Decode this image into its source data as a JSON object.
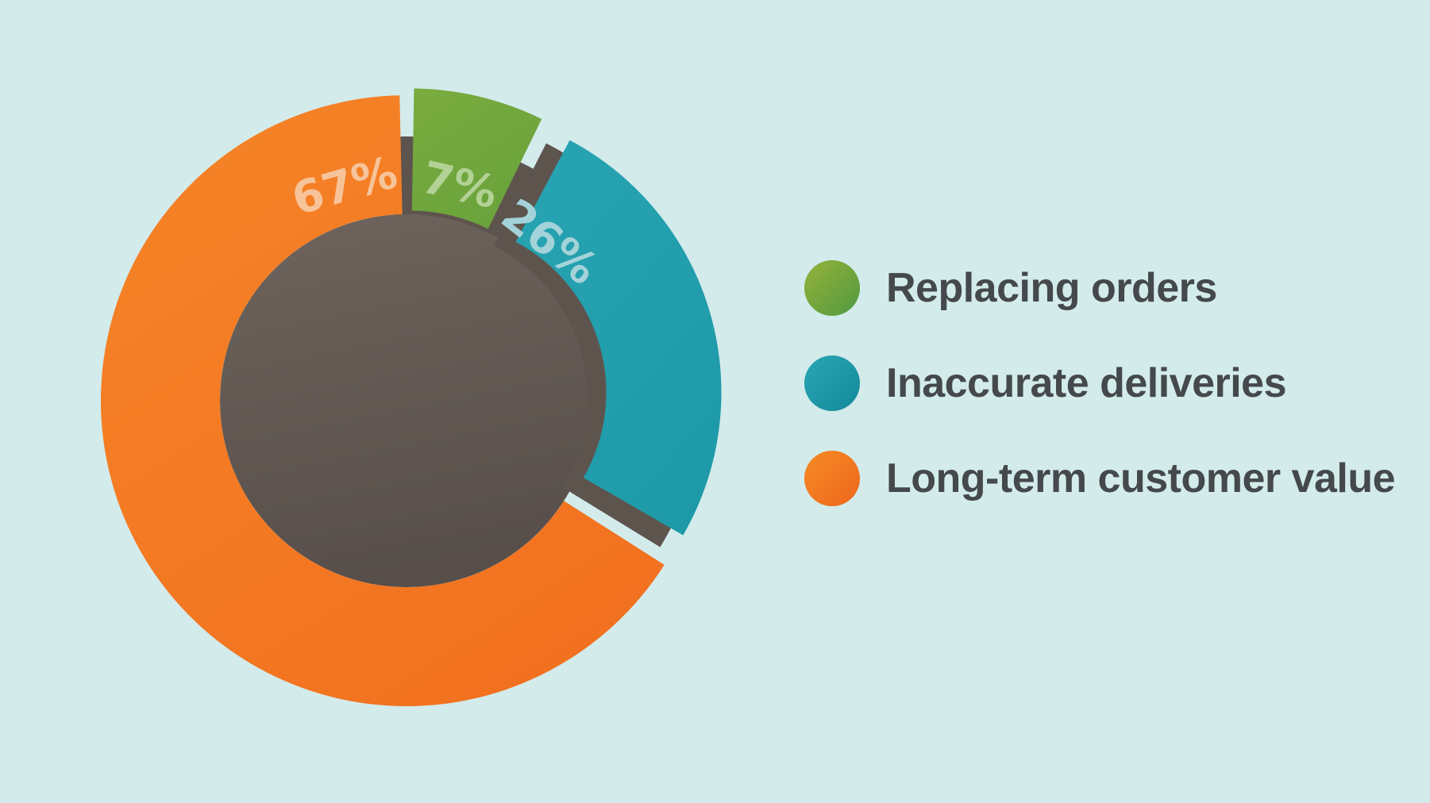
{
  "background_color": "#d3ebeb",
  "chart_data": {
    "type": "pie",
    "subtype": "exploded-donut",
    "title": "",
    "legend_position": "right",
    "hole_color_top": "#6e645d",
    "hole_color_bottom": "#584f4a",
    "shadow_color": "#5e544e",
    "legend_text_color": "#45494b",
    "segments": [
      {
        "label": "Replacing orders",
        "value": 7,
        "pct_label": "7%",
        "color": "#68a23b",
        "color2": "#79ab3f",
        "pct_color": "#b2d194",
        "legend_gradient": [
          "#97b13a",
          "#4f9b40"
        ]
      },
      {
        "label": "Inaccurate deliveries",
        "value": 26,
        "pct_label": "26%",
        "color": "#1d99a7",
        "color2": "#27a3b1",
        "pct_color": "#a3d3d9",
        "legend_gradient": [
          "#2aa6b4",
          "#13899a"
        ]
      },
      {
        "label": "Long-term customer value",
        "value": 67,
        "pct_label": "67%",
        "color": "#f2701f",
        "color2": "#f58327",
        "pct_color": "#f7c49a",
        "legend_gradient": [
          "#f68a25",
          "#ee671c"
        ]
      }
    ]
  }
}
